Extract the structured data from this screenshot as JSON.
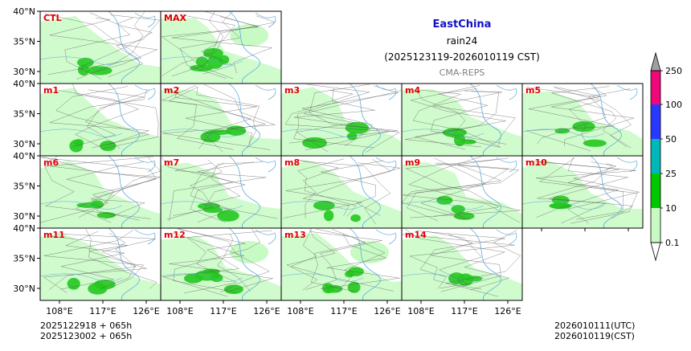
{
  "header": {
    "region": "EastChina",
    "variable": "rain24",
    "period": "(2025123119-2026010119 CST)",
    "source": "CMA-REPS"
  },
  "colors": {
    "region_title": "#1010c8",
    "panel_label": "#e00000",
    "source": "#808080",
    "land_light": "#c8fac4",
    "land_mid": "#22c81e",
    "river": "#5aaadc",
    "border": "#555555",
    "frame": "#000000"
  },
  "chart_data": {
    "type": "heatmap",
    "title": "EastChina rain24 (2025123119-2026010119 CST)",
    "subtitle": "CMA-REPS",
    "panels": [
      "CTL",
      "MAX",
      "m1",
      "m2",
      "m3",
      "m4",
      "m5",
      "m6",
      "m7",
      "m8",
      "m9",
      "m10",
      "m11",
      "m12",
      "m13",
      "m14"
    ],
    "x_ticks": [
      "108°E",
      "117°E",
      "126°E"
    ],
    "y_ticks": [
      "40°N",
      "35°N",
      "30°N"
    ],
    "xlim": [
      104,
      129
    ],
    "ylim": [
      28,
      40
    ],
    "colorbar": {
      "levels": [
        0.1,
        10,
        25,
        50,
        100,
        250
      ],
      "colors": [
        "#c8fac4",
        "#00c800",
        "#00b8b8",
        "#2838ff",
        "#f0087a",
        "#a0a0a0"
      ],
      "extend": "both",
      "tick_labels": [
        "0.1",
        "10",
        "25",
        "50",
        "100",
        "250"
      ]
    }
  },
  "footer": {
    "init_1": "2025122918  +  065h",
    "init_2": "2025123002  +  065h",
    "valid_utc": "2026010111(UTC)",
    "valid_cst": "2026010119(CST)"
  }
}
